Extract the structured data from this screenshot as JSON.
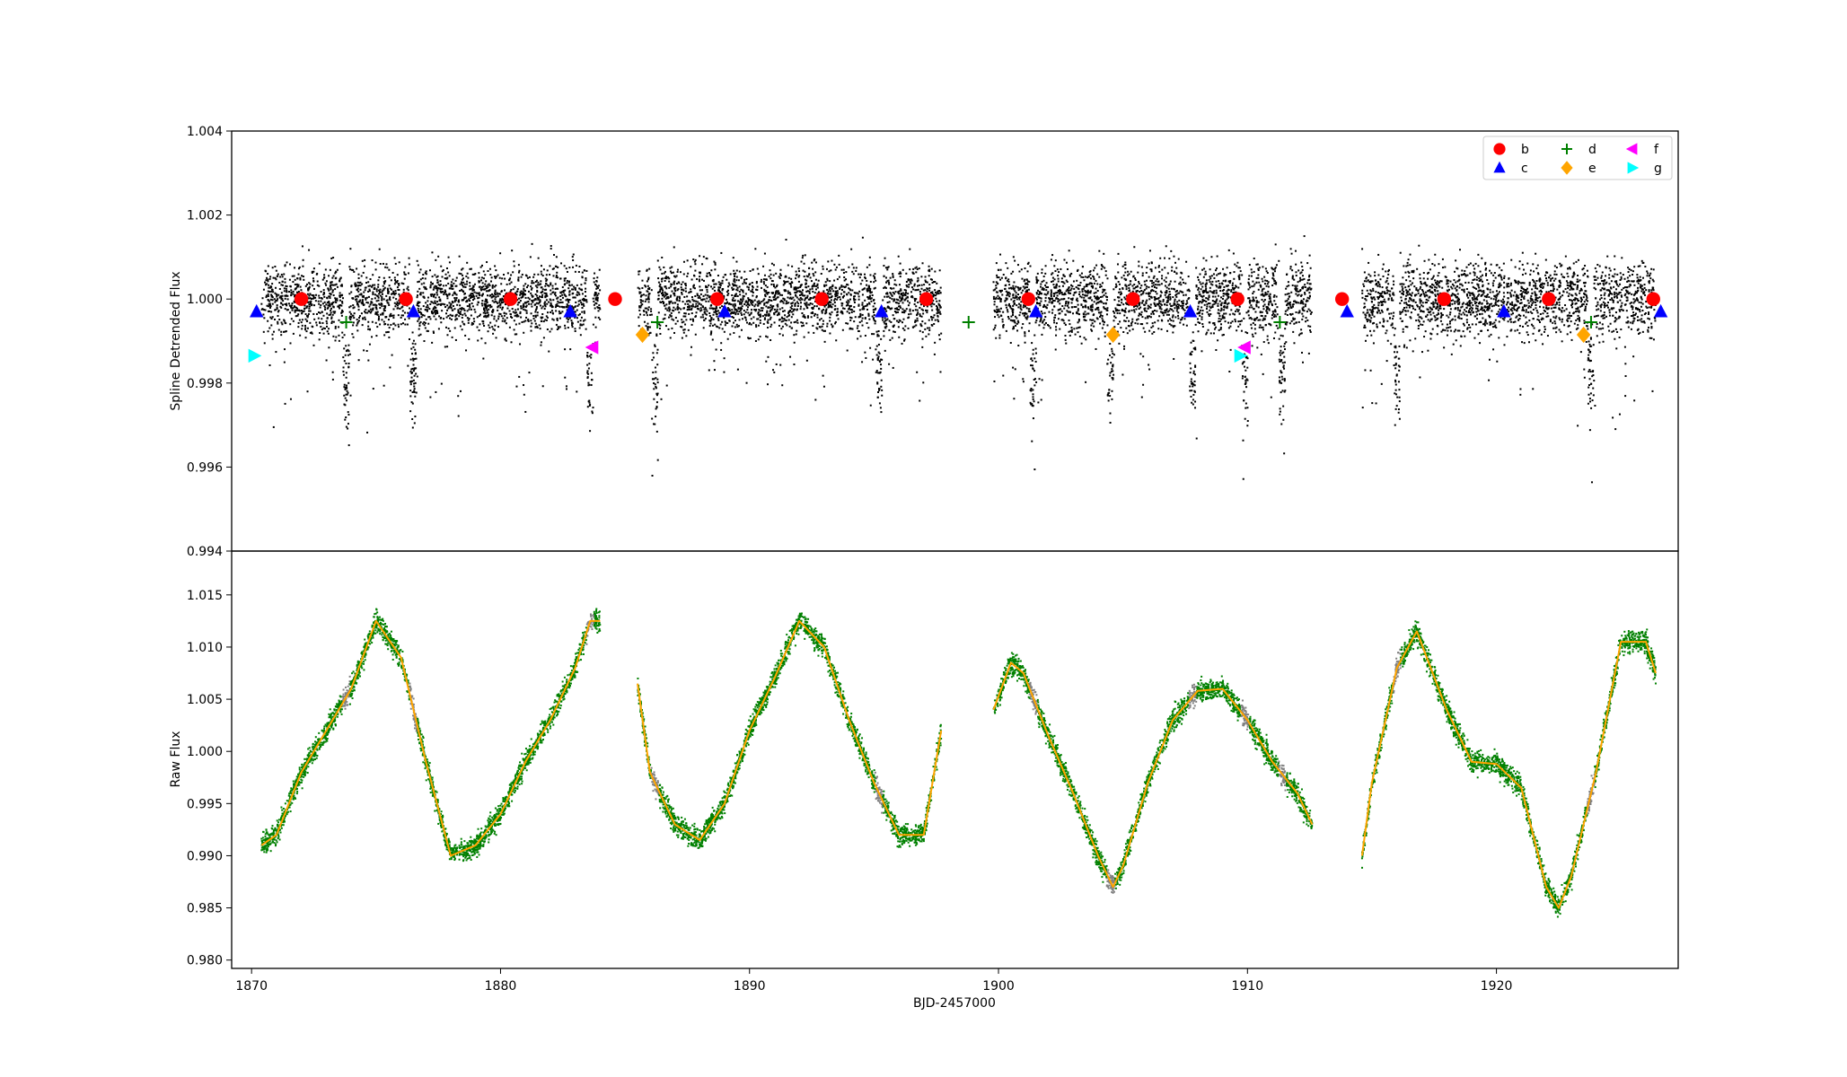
{
  "figure": {
    "xlabel": "BJD-2457000",
    "xlim": [
      1869.2,
      1927.3
    ],
    "xticks": [
      1870,
      1880,
      1890,
      1900,
      1910,
      1920
    ]
  },
  "colors": {
    "b": "#ff0000",
    "c": "#0000ff",
    "d": "#008000",
    "e": "#ffa500",
    "f": "#ff00ff",
    "g": "#00ffff",
    "detrended_points": "#000000",
    "raw_points": "#008000",
    "masked_points": "#808080",
    "trend": "#ffa500"
  },
  "chart_data": [
    {
      "type": "scatter",
      "ylabel": "Spline Detrended Flux",
      "ylim": [
        0.994,
        1.004
      ],
      "yticks": [
        "0.994",
        "0.996",
        "0.998",
        "1.000",
        "1.002",
        "1.004"
      ],
      "legend_position": "top-right",
      "data_segments": [
        [
          1870.4,
          1884.0
        ],
        [
          1885.5,
          1897.7
        ],
        [
          1899.8,
          1912.6
        ],
        [
          1914.6,
          1926.4
        ]
      ],
      "noise_sigma": 0.0006,
      "transit_times": [
        1873.8,
        1876.5,
        1883.6,
        1886.2,
        1895.2,
        1901.4,
        1904.5,
        1907.8,
        1909.9,
        1911.4,
        1916.0,
        1923.8
      ],
      "series": [
        {
          "name": "b",
          "marker": "circle",
          "x": [
            1872.0,
            1876.2,
            1880.4,
            1884.6,
            1888.7,
            1892.9,
            1897.1,
            1901.2,
            1905.4,
            1909.6,
            1913.8,
            1917.9,
            1922.1,
            1926.3
          ],
          "y": [
            1.0,
            1.0,
            1.0,
            1.0,
            1.0,
            1.0,
            1.0,
            1.0,
            1.0,
            1.0,
            1.0,
            1.0,
            1.0,
            1.0
          ]
        },
        {
          "name": "c",
          "marker": "triangle-up",
          "x": [
            1870.2,
            1876.5,
            1882.8,
            1889.0,
            1895.3,
            1901.5,
            1907.7,
            1914.0,
            1920.3,
            1926.6
          ],
          "y": [
            0.9997,
            0.9997,
            0.9997,
            0.9997,
            0.9997,
            0.9997,
            0.9997,
            0.9997,
            0.9997,
            0.9997
          ]
        },
        {
          "name": "d",
          "marker": "plus",
          "x": [
            1873.8,
            1886.3,
            1898.8,
            1911.3,
            1923.8
          ],
          "y": [
            0.99945,
            0.99945,
            0.99945,
            0.99945,
            0.99945
          ]
        },
        {
          "name": "e",
          "marker": "diamond",
          "x": [
            1885.7,
            1904.6,
            1923.5
          ],
          "y": [
            0.99915,
            0.99915,
            0.99915
          ]
        },
        {
          "name": "f",
          "marker": "triangle-left",
          "x": [
            1883.7,
            1909.9
          ],
          "y": [
            0.99885,
            0.99885
          ]
        },
        {
          "name": "g",
          "marker": "triangle-right",
          "x": [
            1870.1,
            1909.7
          ],
          "y": [
            0.99865,
            0.99865
          ]
        }
      ]
    },
    {
      "type": "line",
      "ylabel": "Raw Flux",
      "ylim": [
        0.9792,
        1.0192
      ],
      "yticks": [
        "0.980",
        "0.985",
        "0.990",
        "0.995",
        "1.000",
        "1.005",
        "1.010",
        "1.015"
      ],
      "series": [
        {
          "name": "",
          "role": "trend",
          "x": [
            1870.4,
            1871.0,
            1872.0,
            1873.0,
            1874.0,
            1875.0,
            1876.0,
            1877.0,
            1878.0,
            1879.0,
            1880.0,
            1881.0,
            1882.0,
            1883.0,
            1883.6,
            1884.0
          ],
          "y": [
            0.991,
            0.992,
            0.998,
            1.002,
            1.006,
            1.0125,
            1.009,
            0.999,
            0.99,
            0.991,
            0.994,
            0.999,
            1.003,
            1.008,
            1.0125,
            1.0125
          ]
        },
        {
          "name": "",
          "role": "trend",
          "x": [
            1885.5,
            1886.0,
            1887.0,
            1888.0,
            1889.0,
            1890.0,
            1891.0,
            1892.0,
            1893.0,
            1894.0,
            1895.0,
            1896.0,
            1897.0,
            1897.7
          ],
          "y": [
            1.0065,
            0.998,
            0.993,
            0.9915,
            0.995,
            1.002,
            1.007,
            1.0125,
            1.01,
            1.003,
            0.997,
            0.992,
            0.992,
            1.002
          ]
        },
        {
          "name": "",
          "role": "trend",
          "x": [
            1899.8,
            1900.5,
            1901.0,
            1902.0,
            1903.0,
            1904.0,
            1904.6,
            1905.0,
            1906.0,
            1907.0,
            1908.0,
            1909.0,
            1910.0,
            1911.0,
            1912.0,
            1912.6
          ],
          "y": [
            1.004,
            1.0085,
            1.0075,
            1.0015,
            0.996,
            0.99,
            0.987,
            0.989,
            0.997,
            1.003,
            1.0058,
            1.006,
            1.003,
            0.999,
            0.996,
            0.993
          ]
        },
        {
          "name": "",
          "role": "trend",
          "x": [
            1914.6,
            1915.0,
            1916.0,
            1916.8,
            1918.0,
            1919.0,
            1920.0,
            1921.0,
            1922.0,
            1922.5,
            1923.0,
            1924.0,
            1925.0,
            1926.0,
            1926.4
          ],
          "y": [
            0.99,
            0.997,
            1.008,
            1.0115,
            1.004,
            0.999,
            0.9988,
            0.9965,
            0.987,
            0.985,
            0.988,
            0.998,
            1.0105,
            1.0105,
            1.0075
          ]
        }
      ]
    }
  ]
}
